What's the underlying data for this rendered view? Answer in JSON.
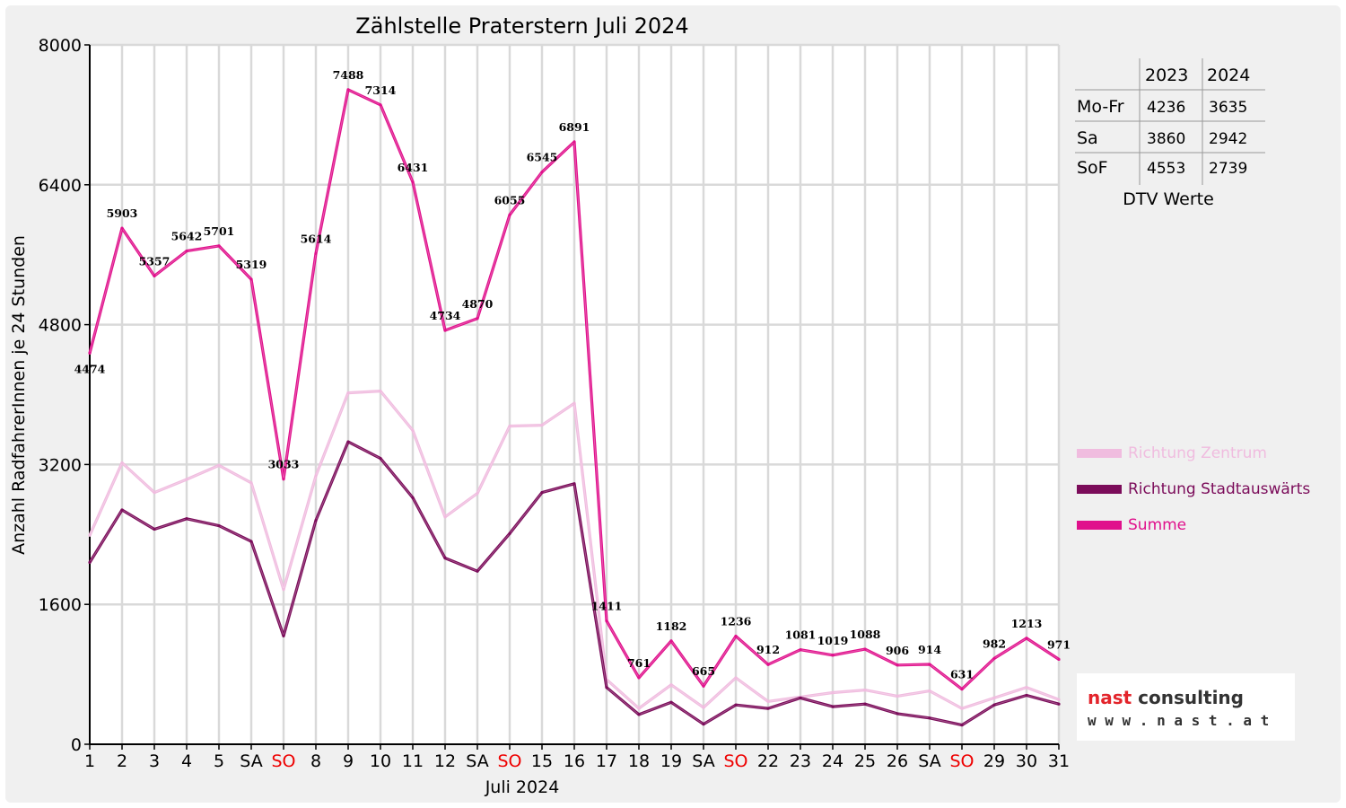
{
  "chart_data": {
    "type": "line",
    "title": "Zählstelle Praterstern Juli 2024",
    "xlabel": "Juli 2024",
    "ylabel": "Anzahl RadfahrerInnen je 24 Stunden",
    "ylim": [
      0,
      8000
    ],
    "yticks": [
      0,
      1600,
      3200,
      4800,
      6400,
      8000
    ],
    "grid": true,
    "legend_position": "right",
    "categories": [
      "1",
      "2",
      "3",
      "4",
      "5",
      "SA",
      "SO",
      "8",
      "9",
      "10",
      "11",
      "12",
      "SA",
      "SO",
      "15",
      "16",
      "17",
      "18",
      "19",
      "SA",
      "SO",
      "22",
      "23",
      "24",
      "25",
      "26",
      "SA",
      "SO",
      "29",
      "30",
      "31"
    ],
    "weekend_categories": [
      "SO"
    ],
    "series": [
      {
        "name": "Richtung Zentrum",
        "color": "#f0bcdf",
        "values": [
          2390,
          3220,
          2880,
          3030,
          3190,
          2990,
          1770,
          3070,
          4020,
          4040,
          3590,
          2600,
          2870,
          3640,
          3650,
          3900,
          740,
          410,
          680,
          420,
          760,
          490,
          540,
          590,
          620,
          550,
          610,
          410,
          530,
          650,
          510
        ]
      },
      {
        "name": "Richtung Stadtauswärts",
        "color": "#7b0c5a",
        "values": [
          2080,
          2680,
          2460,
          2580,
          2500,
          2320,
          1240,
          2560,
          3460,
          3270,
          2820,
          2130,
          1980,
          2410,
          2880,
          2980,
          650,
          340,
          480,
          230,
          450,
          410,
          530,
          430,
          460,
          350,
          300,
          220,
          450,
          560,
          460
        ]
      },
      {
        "name": "Summe",
        "color": "#e0118c",
        "values": [
          4474,
          5903,
          5357,
          5642,
          5701,
          5319,
          3033,
          5614,
          7488,
          7314,
          6431,
          4734,
          4870,
          6055,
          6545,
          6891,
          1411,
          761,
          1182,
          665,
          1236,
          912,
          1081,
          1019,
          1088,
          906,
          914,
          631,
          982,
          1213,
          971
        ],
        "labels": [
          "4474",
          "5903",
          "5357",
          "5642",
          "5701",
          "5319",
          "3033",
          "5614",
          "7488",
          "7314",
          "6431",
          "4734",
          "4870",
          "6055",
          "6545",
          "6891",
          "1411",
          "761",
          "1182",
          "665",
          "1236",
          "912",
          "1081",
          "1019",
          "1088",
          "906",
          "914",
          "631",
          "982",
          "1213",
          "971"
        ]
      }
    ]
  },
  "colors": {
    "weekend": "#ee0000",
    "frame": "#f0f0f0",
    "grid": "#d9d9d9",
    "logo_accent": "#e3242b"
  },
  "dtv_table": {
    "headers": [
      "2023",
      "2024"
    ],
    "rows": [
      {
        "label": "Mo-Fr",
        "v2023": "4236",
        "v2024": "3635"
      },
      {
        "label": "Sa",
        "v2023": "3860",
        "v2024": "2942"
      },
      {
        "label": "SoF",
        "v2023": "4553",
        "v2024": "2739"
      }
    ],
    "caption": "DTV Werte"
  },
  "logo": {
    "line1": "nast consulting",
    "line2": "w w w . n a s t . a t"
  }
}
